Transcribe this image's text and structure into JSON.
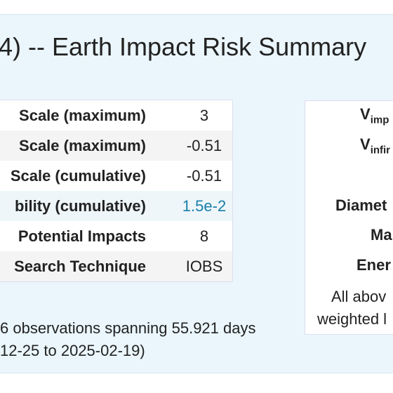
{
  "header": {
    "title": "4) -- Earth Impact Risk Summary"
  },
  "left_table": {
    "rows": [
      {
        "label": "Scale (maximum)",
        "value": "3"
      },
      {
        "label": "Scale (maximum)",
        "value": "-0.51"
      },
      {
        "label": "Scale (cumulative)",
        "value": "-0.51"
      },
      {
        "label": "bility (cumulative)",
        "value": "1.5e-2",
        "link": true
      },
      {
        "label": "Potential Impacts",
        "value": "8"
      },
      {
        "label": "Search Technique",
        "value": "IOBS"
      }
    ]
  },
  "footer": {
    "lines": [
      "6 observations spanning 55.921 days",
      "12-25 to 2025-02-19)"
    ]
  },
  "right_table": {
    "rows": [
      {
        "main": "V",
        "sub": "imp"
      },
      {
        "main": "V",
        "sub": "infir"
      },
      {
        "main": "Diamet"
      },
      {
        "main": "Ma"
      },
      {
        "main": "Ener"
      }
    ],
    "note": [
      "All abov",
      "weighted l"
    ]
  }
}
